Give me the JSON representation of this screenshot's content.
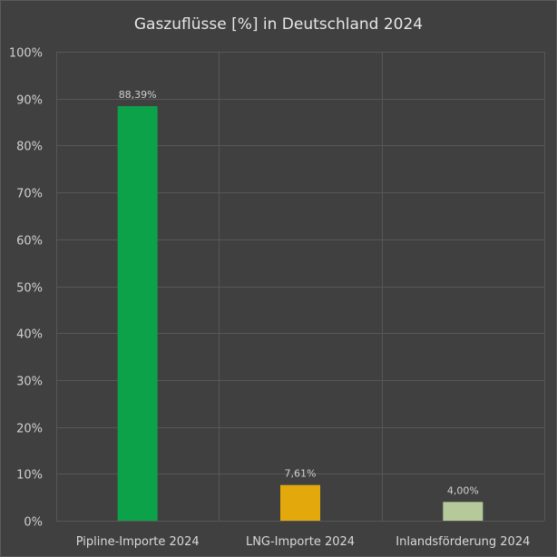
{
  "chart_data": {
    "type": "bar",
    "title": "Gaszuflüsse [%] in Deutschland 2024",
    "xlabel": "",
    "ylabel": "",
    "categories": [
      "Pipline-Importe 2024",
      "LNG-Importe 2024",
      "Inlandsförderung 2024"
    ],
    "values": [
      88.39,
      7.61,
      4.0
    ],
    "data_labels": [
      "88,39%",
      "7,61%",
      "4,00%"
    ],
    "colors": [
      "#0ca24a",
      "#e3a90c",
      "#b5c99a"
    ],
    "ylim": [
      0,
      100
    ],
    "y_ticks": [
      0,
      10,
      20,
      30,
      40,
      50,
      60,
      70,
      80,
      90,
      100
    ],
    "y_tick_labels": [
      "0%",
      "10%",
      "20%",
      "30%",
      "40%",
      "50%",
      "60%",
      "70%",
      "80%",
      "90%",
      "100%"
    ],
    "grid": true,
    "legend": "none",
    "background_color": "#404040"
  }
}
